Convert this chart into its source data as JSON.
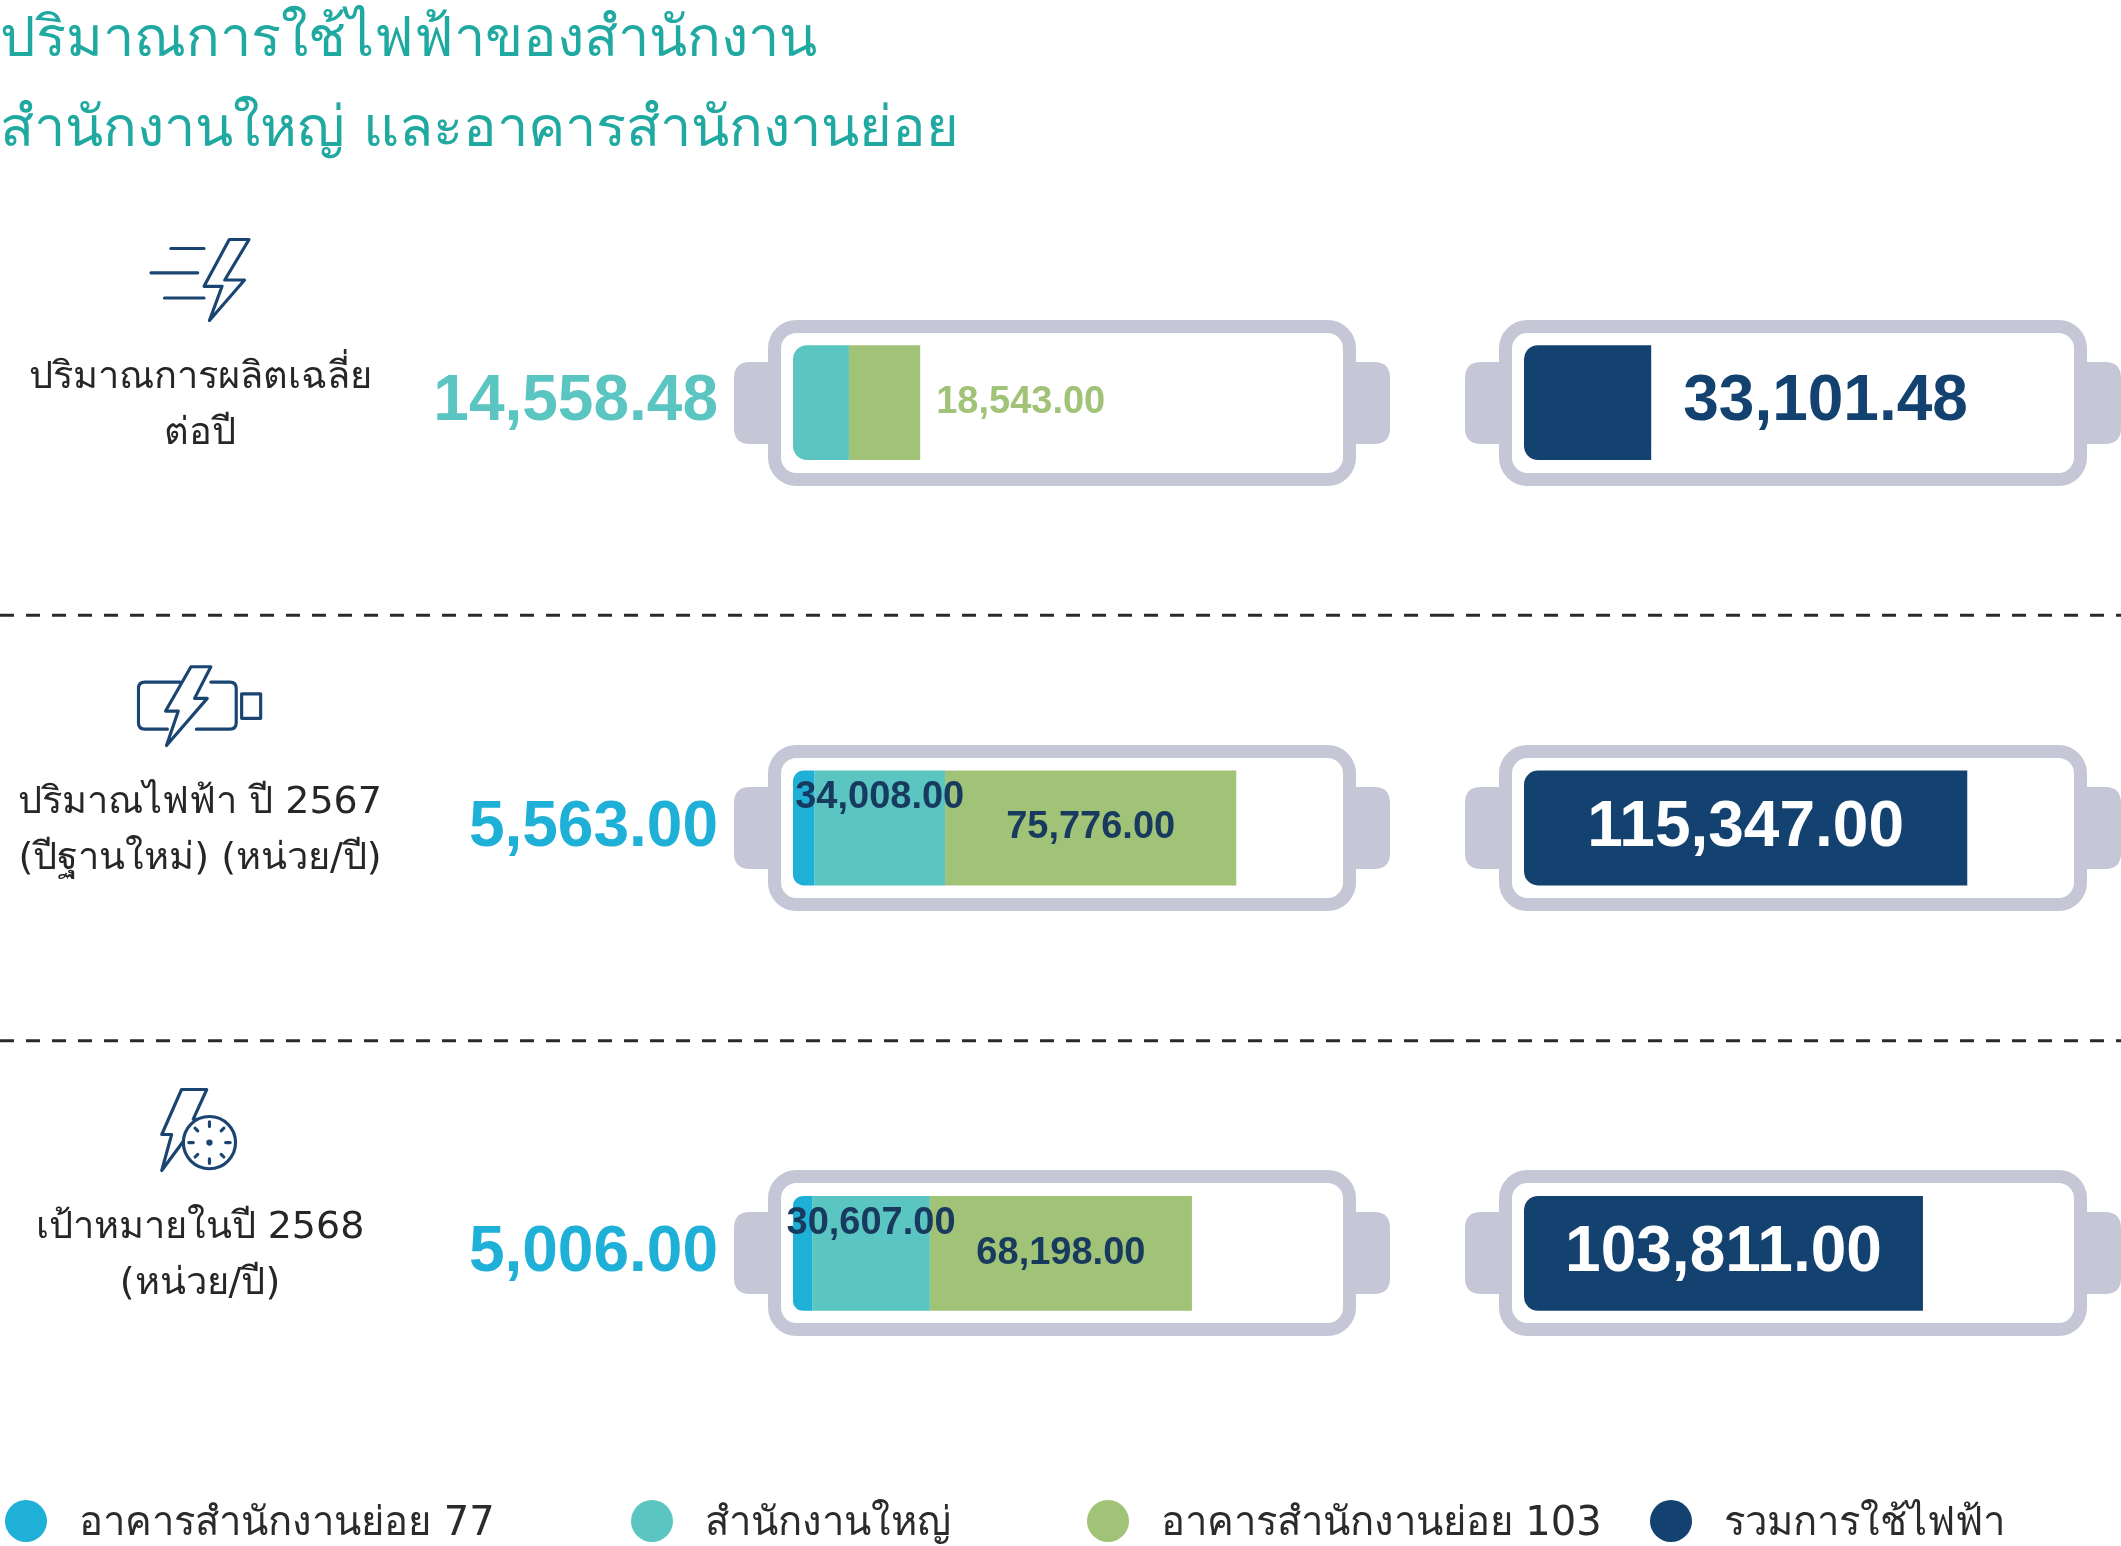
{
  "chart_data": [
    {
      "type": "bar",
      "orientation": "horizontal",
      "stacked": true,
      "title": "ปริมาณการใช้ไฟฟ้าของสำนักงาน สำนักงานใหญ่ และอาคารสำนักงานย่อย",
      "categories": [
        "ปริมาณการผลิตเฉลี่ยต่อปี",
        "ปริมาณไฟฟ้า ปี 2567 (ปีฐานใหม่) (หน่วย/ปี)",
        "เป้าหมายในปี 2568 (หน่วย/ปี)"
      ],
      "tick_labels": "y",
      "legend": "bottom",
      "grid": "y",
      "series": [
        {
          "name": "อาคารสำนักงานย่อย 77",
          "color": "#1fb0d8",
          "values": [
            null,
            5563,
            5006
          ],
          "value_labels": [
            null,
            "5,563.00",
            "5,006.00"
          ]
        },
        {
          "name": "สำนักงานใหญ่",
          "color": "#5bc5c2",
          "values": [
            14558.48,
            34008,
            30607
          ],
          "value_labels": [
            "14,558.48",
            "34,008.00",
            "30,607.00"
          ]
        },
        {
          "name": "อาคารสำนักงานย่อย 103",
          "color": "#a0c378",
          "values": [
            18543,
            75776,
            68198
          ],
          "value_labels": [
            "18,543.00",
            "75,776.00",
            "68,198.00"
          ]
        }
      ]
    },
    {
      "type": "bar",
      "orientation": "horizontal",
      "categories": [
        null,
        null,
        null
      ],
      "legend": "bottom",
      "grid": "y",
      "series": [
        {
          "name": "รวมการใช้ไฟฟ้า",
          "color": "#134170",
          "values": [
            33101.48,
            115347,
            103811
          ],
          "value_labels": [
            "33,101.48",
            "115,347.00",
            "103,811.00"
          ]
        }
      ]
    }
  ]
}
